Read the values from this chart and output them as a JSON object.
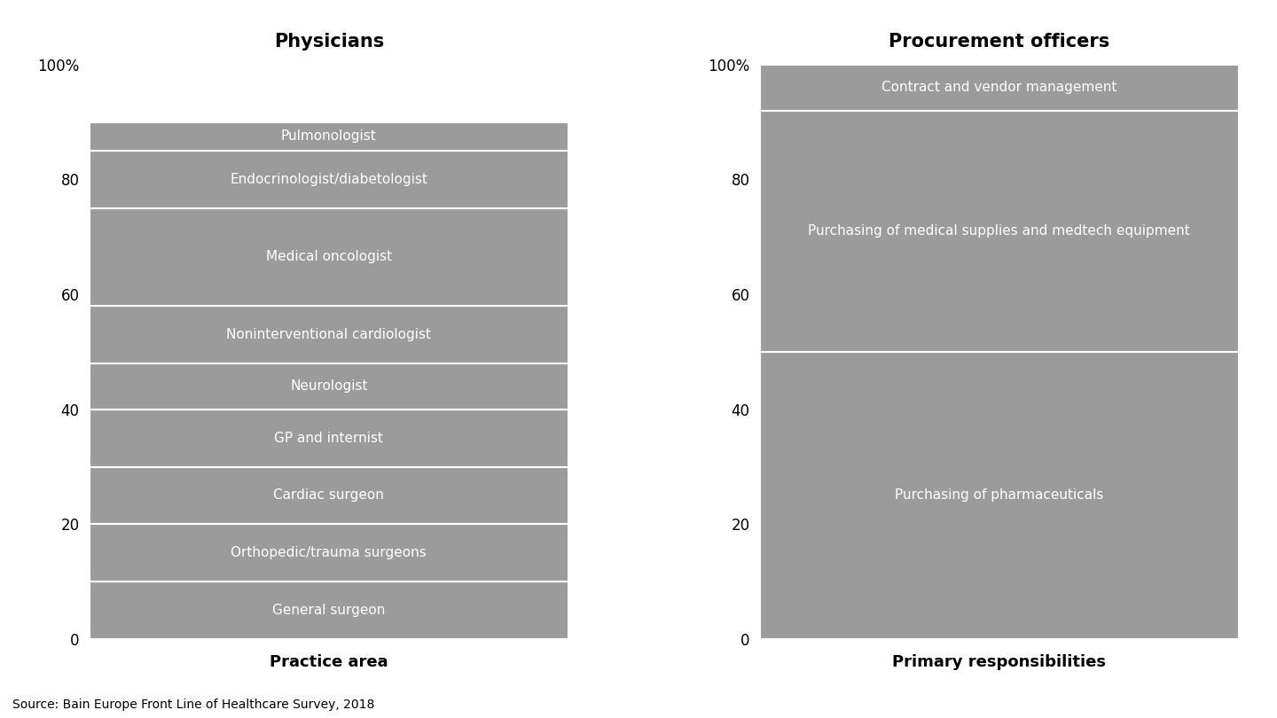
{
  "physicians_title": "Physicians",
  "procurement_title": "Procurement officers",
  "physicians_xlabel": "Practice area",
  "procurement_xlabel": "Primary responsibilities",
  "source_text": "Source: Bain Europe Front Line of Healthcare Survey, 2018",
  "physicians_segments": [
    {
      "label": "General surgeon",
      "value": 10
    },
    {
      "label": "Orthopedic/trauma surgeons",
      "value": 10
    },
    {
      "label": "Cardiac surgeon",
      "value": 10
    },
    {
      "label": "GP and internist",
      "value": 10
    },
    {
      "label": "Neurologist",
      "value": 8
    },
    {
      "label": "Noninterventional cardiologist",
      "value": 10
    },
    {
      "label": "Medical oncologist",
      "value": 17
    },
    {
      "label": "Endocrinologist/diabetologist",
      "value": 10
    },
    {
      "label": "Pulmonologist",
      "value": 5
    }
  ],
  "procurement_segments": [
    {
      "label": "Purchasing of pharmaceuticals",
      "value": 50
    },
    {
      "label": "Purchasing of medical supplies and medtech equipment",
      "value": 42
    },
    {
      "label": "Contract and vendor management",
      "value": 8
    }
  ],
  "bar_color": "#9b9b9b",
  "segment_divider_color": "#ffffff",
  "text_color": "#ffffff",
  "background_color": "#ffffff",
  "title_fontsize": 15,
  "label_fontsize": 11,
  "axis_label_fontsize": 13,
  "tick_fontsize": 12,
  "source_fontsize": 10,
  "ytick_values": [
    0,
    20,
    40,
    60,
    80,
    100
  ],
  "ytick_labels": [
    "0",
    "20",
    "40",
    "60",
    "80",
    "100%"
  ]
}
